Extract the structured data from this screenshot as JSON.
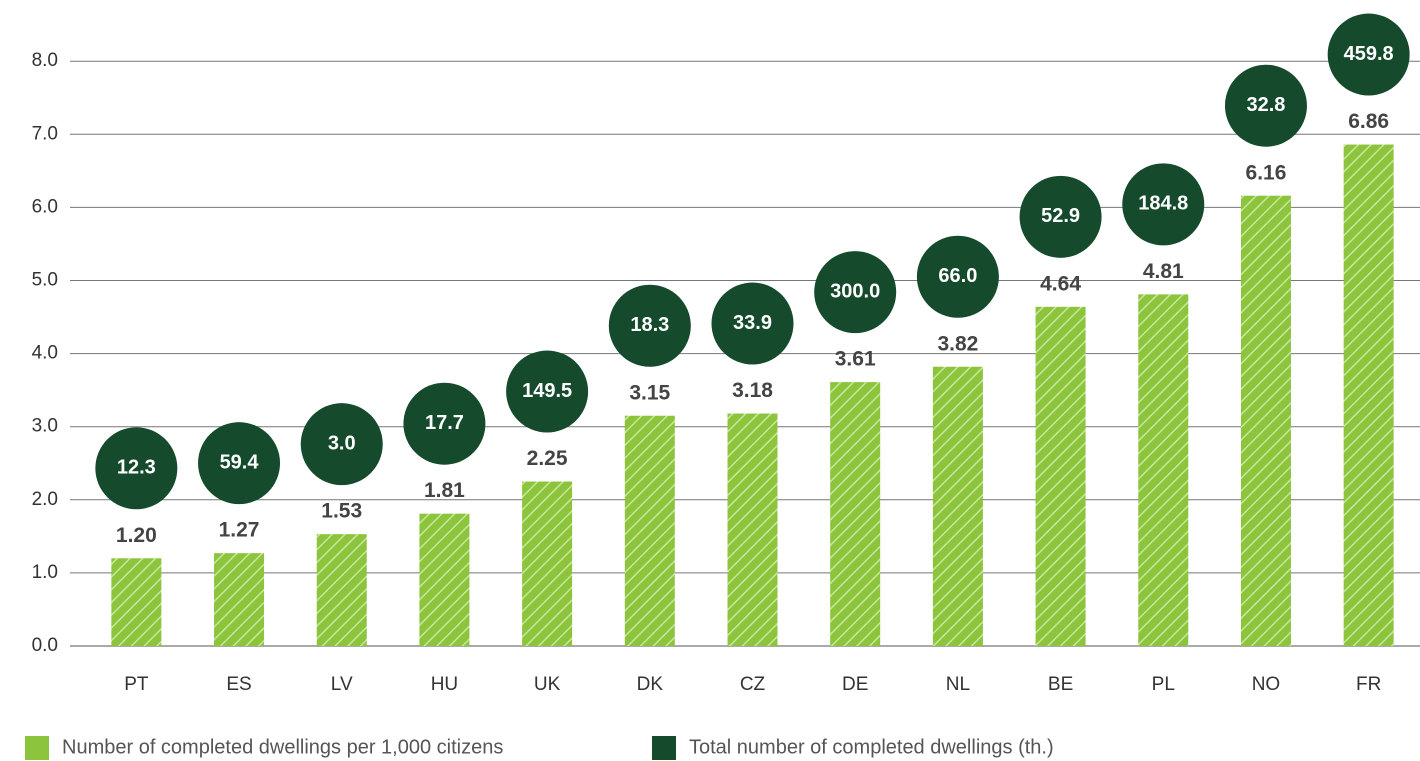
{
  "chart_data": {
    "type": "bar",
    "categories": [
      "PT",
      "ES",
      "LV",
      "HU",
      "UK",
      "DK",
      "CZ",
      "DE",
      "NL",
      "BE",
      "PL",
      "NO",
      "FR"
    ],
    "series": [
      {
        "name": "Number of completed dwellings per 1,000 citizens",
        "color": "#8cc43c",
        "values": [
          1.2,
          1.27,
          1.53,
          1.81,
          2.25,
          3.15,
          3.18,
          3.61,
          3.82,
          4.64,
          4.81,
          6.16,
          6.86
        ],
        "value_labels": [
          "1.20",
          "1.27",
          "1.53",
          "1.81",
          "2.25",
          "3.15",
          "3.18",
          "3.61",
          "3.82",
          "4.64",
          "4.81",
          "6.16",
          "6.86"
        ]
      },
      {
        "name": "Total number of completed dwellings (th.)",
        "color": "#154a2d",
        "values": [
          12.3,
          59.4,
          3,
          17.7,
          149.5,
          18.3,
          33.9,
          300,
          66,
          52.9,
          184.8,
          32.8,
          459.8
        ],
        "value_labels": [
          "12.3",
          "59.4",
          "3.0",
          "17.7",
          "149.5",
          "18.3",
          "33.9",
          "300.0",
          "66.0",
          "52.9",
          "184.8",
          "32.8",
          "459.8"
        ]
      }
    ],
    "ylim": [
      0,
      8.6
    ],
    "yticks": [
      {
        "value": 0,
        "label": "0.0"
      },
      {
        "value": 1,
        "label": "1.0"
      },
      {
        "value": 2,
        "label": "2.0"
      },
      {
        "value": 3,
        "label": "3.0"
      },
      {
        "value": 4,
        "label": "4.0"
      },
      {
        "value": 5,
        "label": "5.0"
      },
      {
        "value": 6,
        "label": "6.0"
      },
      {
        "value": 7,
        "label": "7.0"
      },
      {
        "value": 8,
        "label": "8.0"
      }
    ],
    "grid": true
  }
}
